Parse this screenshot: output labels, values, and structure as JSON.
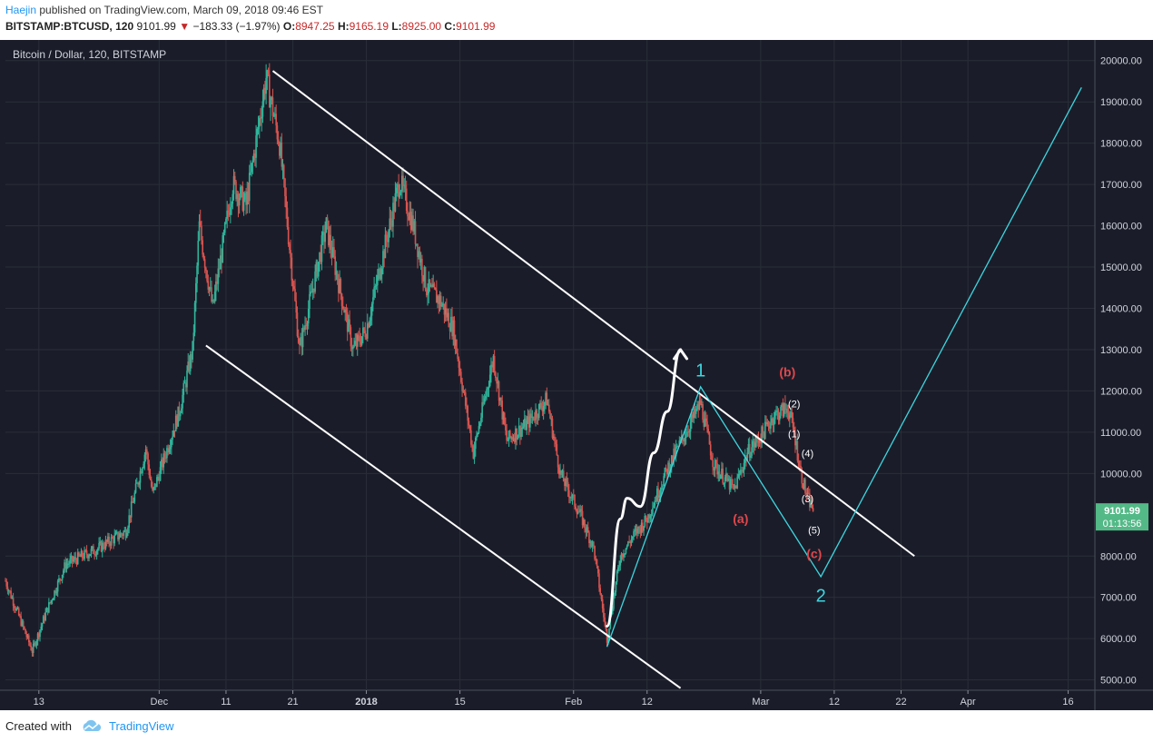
{
  "header": {
    "author": "Haejin",
    "published_text": "published on TradingView.com, March 09, 2018 09:46 EST",
    "symbol": "BITSTAMP:BTCUSD, 120",
    "last": "9101.99",
    "change": "−183.33 (−1.97%)",
    "o_label": "O:",
    "o": "8947.25",
    "h_label": "H:",
    "h": "9165.19",
    "l_label": "L:",
    "l": "8925.00",
    "c_label": "C:",
    "c": "9101.99"
  },
  "footer": {
    "created_with": "Created with",
    "brand": "TradingView"
  },
  "colors": {
    "background": "#1a1d29",
    "up": "#2fb59b",
    "down": "#d9534f",
    "channel": "#ffffff",
    "wave": "#3dd6e0",
    "label_red": "#e0474c",
    "price_badge": "#53b987"
  },
  "chart_data": {
    "type": "candlestick",
    "title": "Bitcoin / Dollar, 120, BITSTAMP",
    "ylim": [
      4750,
      20500
    ],
    "y_ticks": [
      "20000.00",
      "19000.00",
      "18000.00",
      "17000.00",
      "16000.00",
      "15000.00",
      "14000.00",
      "13000.00",
      "12000.00",
      "11000.00",
      "10000.00",
      "8000.00",
      "7000.00",
      "6000.00",
      "5000.00"
    ],
    "x_ticks": [
      "13",
      "Dec",
      "11",
      "21",
      "2018",
      "15",
      "Feb",
      "12",
      "Mar",
      "12",
      "22",
      "Apr",
      "16"
    ],
    "current_price": "9101.99",
    "countdown": "01:13:56",
    "price_path": [
      {
        "date": "2017-11-08",
        "p": 7400
      },
      {
        "date": "2017-11-12",
        "p": 5700
      },
      {
        "date": "2017-11-14",
        "p": 6600
      },
      {
        "date": "2017-11-17",
        "p": 7800
      },
      {
        "date": "2017-11-22",
        "p": 8200
      },
      {
        "date": "2017-11-26",
        "p": 8600
      },
      {
        "date": "2017-11-29",
        "p": 10600
      },
      {
        "date": "2017-11-30",
        "p": 9500
      },
      {
        "date": "2017-12-04",
        "p": 11500
      },
      {
        "date": "2017-12-06",
        "p": 13000
      },
      {
        "date": "2017-12-07",
        "p": 16000
      },
      {
        "date": "2017-12-09",
        "p": 14000
      },
      {
        "date": "2017-12-12",
        "p": 17000
      },
      {
        "date": "2017-12-14",
        "p": 16500
      },
      {
        "date": "2017-12-17",
        "p": 19600
      },
      {
        "date": "2017-12-19",
        "p": 18000
      },
      {
        "date": "2017-12-22",
        "p": 13000
      },
      {
        "date": "2017-12-24",
        "p": 14500
      },
      {
        "date": "2017-12-26",
        "p": 16000
      },
      {
        "date": "2017-12-30",
        "p": 13000
      },
      {
        "date": "2018-01-01",
        "p": 13500
      },
      {
        "date": "2018-01-06",
        "p": 17100
      },
      {
        "date": "2018-01-08",
        "p": 16000
      },
      {
        "date": "2018-01-10",
        "p": 14500
      },
      {
        "date": "2018-01-12",
        "p": 14200
      },
      {
        "date": "2018-01-14",
        "p": 13500
      },
      {
        "date": "2018-01-17",
        "p": 10500
      },
      {
        "date": "2018-01-20",
        "p": 12800
      },
      {
        "date": "2018-01-22",
        "p": 10800
      },
      {
        "date": "2018-01-25",
        "p": 11200
      },
      {
        "date": "2018-01-28",
        "p": 11800
      },
      {
        "date": "2018-01-30",
        "p": 10000
      },
      {
        "date": "2018-02-02",
        "p": 9000
      },
      {
        "date": "2018-02-04",
        "p": 8200
      },
      {
        "date": "2018-02-06",
        "p": 6000
      },
      {
        "date": "2018-02-08",
        "p": 8000
      },
      {
        "date": "2018-02-10",
        "p": 8500
      },
      {
        "date": "2018-02-12",
        "p": 8900
      },
      {
        "date": "2018-02-15",
        "p": 10100
      },
      {
        "date": "2018-02-20",
        "p": 11700
      },
      {
        "date": "2018-02-22",
        "p": 10200
      },
      {
        "date": "2018-02-25",
        "p": 9600
      },
      {
        "date": "2018-02-27",
        "p": 10500
      },
      {
        "date": "2018-03-01",
        "p": 10900
      },
      {
        "date": "2018-03-03",
        "p": 11400
      },
      {
        "date": "2018-03-05",
        "p": 11600
      },
      {
        "date": "2018-03-06",
        "p": 11000
      },
      {
        "date": "2018-03-07",
        "p": 10000
      },
      {
        "date": "2018-03-08",
        "p": 9400
      },
      {
        "date": "2018-03-09",
        "p": 9101.99
      }
    ],
    "drawings": {
      "channel_upper": [
        {
          "date": "2017-12-18",
          "p": 19750
        },
        {
          "date": "2018-03-24",
          "p": 8000
        }
      ],
      "channel_lower": [
        {
          "date": "2017-12-08",
          "p": 13100
        },
        {
          "date": "2018-02-17",
          "p": 4800
        }
      ],
      "projection_curve": [
        {
          "date": "2018-02-06",
          "p": 6300
        },
        {
          "date": "2018-02-08",
          "p": 8900
        },
        {
          "date": "2018-02-09",
          "p": 9400
        },
        {
          "date": "2018-02-11",
          "p": 9200
        },
        {
          "date": "2018-02-13",
          "p": 10500
        },
        {
          "date": "2018-02-15",
          "p": 11500
        },
        {
          "date": "2018-02-17",
          "p": 13000
        }
      ],
      "wave_path": [
        {
          "date": "2018-02-06",
          "p": 5800
        },
        {
          "date": "2018-02-20",
          "p": 12100
        },
        {
          "date": "2018-03-10",
          "p": 7500
        },
        {
          "date": "2018-04-18",
          "p": 19350
        }
      ]
    },
    "annotations": [
      {
        "text": "1",
        "date": "2018-02-20",
        "p": 12350,
        "color": "wave"
      },
      {
        "text": "2",
        "date": "2018-03-10",
        "p": 6900,
        "color": "wave"
      },
      {
        "text": "(b)",
        "date": "2018-03-05",
        "p": 12350,
        "color": "label_red"
      },
      {
        "text": "(a)",
        "date": "2018-02-26",
        "p": 8800,
        "color": "label_red"
      },
      {
        "text": "(c)",
        "date": "2018-03-09",
        "p": 7950,
        "color": "label_red"
      },
      {
        "text": "(2)",
        "date": "2018-03-06",
        "p": 11600,
        "color": "white"
      },
      {
        "text": "(1)",
        "date": "2018-03-06",
        "p": 10880,
        "color": "white"
      },
      {
        "text": "(4)",
        "date": "2018-03-08",
        "p": 10400,
        "color": "white"
      },
      {
        "text": "(3)",
        "date": "2018-03-08",
        "p": 9300,
        "color": "white"
      },
      {
        "text": "(5)",
        "date": "2018-03-09",
        "p": 8550,
        "color": "white"
      }
    ]
  }
}
